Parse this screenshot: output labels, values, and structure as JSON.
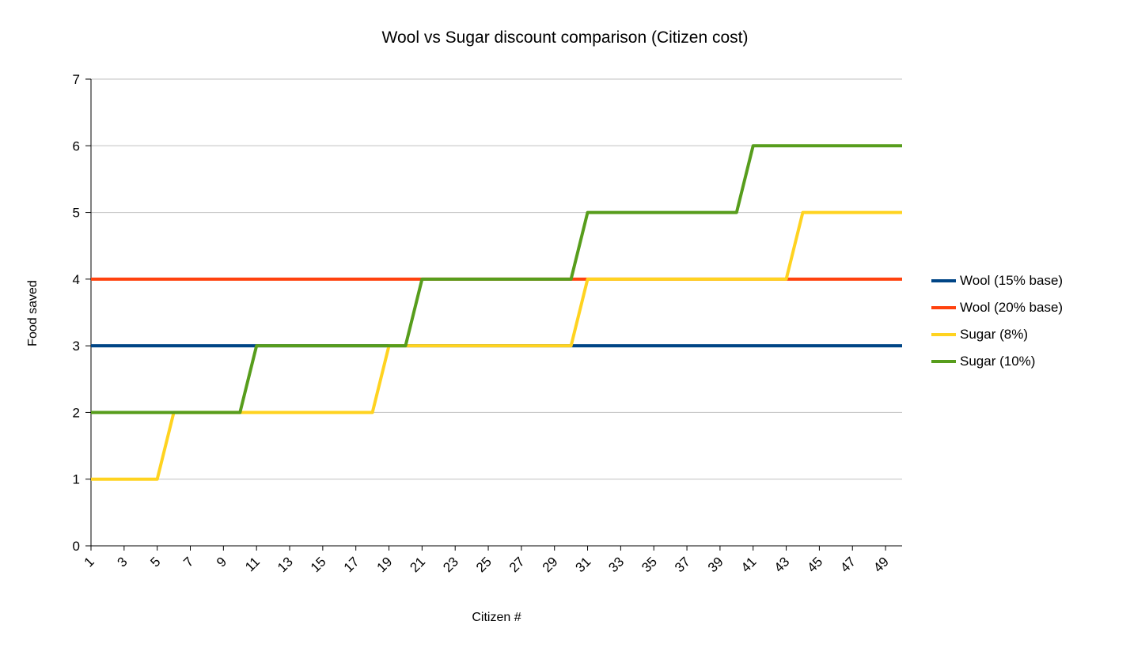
{
  "chart_data": {
    "type": "line",
    "title": "Wool vs Sugar discount comparison (Citizen cost)",
    "xlabel": "Citizen #",
    "ylabel": "Food saved",
    "ylim": [
      0,
      7
    ],
    "y_ticks": [
      0,
      1,
      2,
      3,
      4,
      5,
      6,
      7
    ],
    "x_tick_labels": [
      1,
      3,
      5,
      7,
      9,
      11,
      13,
      15,
      17,
      19,
      21,
      23,
      25,
      27,
      29,
      31,
      33,
      35,
      37,
      39,
      41,
      43,
      45,
      47,
      49
    ],
    "grid": true,
    "legend_position": "right",
    "line_width": 4,
    "colors": {
      "grid": "#c0c0c0",
      "axis": "#000000",
      "text": "#000000",
      "background": "#ffffff"
    },
    "x": [
      1,
      2,
      3,
      4,
      5,
      6,
      7,
      8,
      9,
      10,
      11,
      12,
      13,
      14,
      15,
      16,
      17,
      18,
      19,
      20,
      21,
      22,
      23,
      24,
      25,
      26,
      27,
      28,
      29,
      30,
      31,
      32,
      33,
      34,
      35,
      36,
      37,
      38,
      39,
      40,
      41,
      42,
      43,
      44,
      45,
      46,
      47,
      48,
      49,
      50
    ],
    "series": [
      {
        "name": "Wool (15% base)",
        "color": "#004586",
        "values": [
          3,
          3,
          3,
          3,
          3,
          3,
          3,
          3,
          3,
          3,
          3,
          3,
          3,
          3,
          3,
          3,
          3,
          3,
          3,
          3,
          3,
          3,
          3,
          3,
          3,
          3,
          3,
          3,
          3,
          3,
          3,
          3,
          3,
          3,
          3,
          3,
          3,
          3,
          3,
          3,
          3,
          3,
          3,
          3,
          3,
          3,
          3,
          3,
          3,
          3
        ]
      },
      {
        "name": "Wool (20% base)",
        "color": "#FF420E",
        "values": [
          4,
          4,
          4,
          4,
          4,
          4,
          4,
          4,
          4,
          4,
          4,
          4,
          4,
          4,
          4,
          4,
          4,
          4,
          4,
          4,
          4,
          4,
          4,
          4,
          4,
          4,
          4,
          4,
          4,
          4,
          4,
          4,
          4,
          4,
          4,
          4,
          4,
          4,
          4,
          4,
          4,
          4,
          4,
          4,
          4,
          4,
          4,
          4,
          4,
          4
        ]
      },
      {
        "name": "Sugar (8%)",
        "color": "#FFD320",
        "values": [
          1,
          1,
          1,
          1,
          1,
          2,
          2,
          2,
          2,
          2,
          2,
          2,
          2,
          2,
          2,
          2,
          2,
          2,
          3,
          3,
          3,
          3,
          3,
          3,
          3,
          3,
          3,
          3,
          3,
          3,
          4,
          4,
          4,
          4,
          4,
          4,
          4,
          4,
          4,
          4,
          4,
          4,
          4,
          5,
          5,
          5,
          5,
          5,
          5,
          5
        ]
      },
      {
        "name": "Sugar (10%)",
        "color": "#579D1C",
        "values": [
          2,
          2,
          2,
          2,
          2,
          2,
          2,
          2,
          2,
          2,
          3,
          3,
          3,
          3,
          3,
          3,
          3,
          3,
          3,
          3,
          4,
          4,
          4,
          4,
          4,
          4,
          4,
          4,
          4,
          4,
          5,
          5,
          5,
          5,
          5,
          5,
          5,
          5,
          5,
          5,
          6,
          6,
          6,
          6,
          6,
          6,
          6,
          6,
          6,
          6
        ]
      }
    ]
  }
}
